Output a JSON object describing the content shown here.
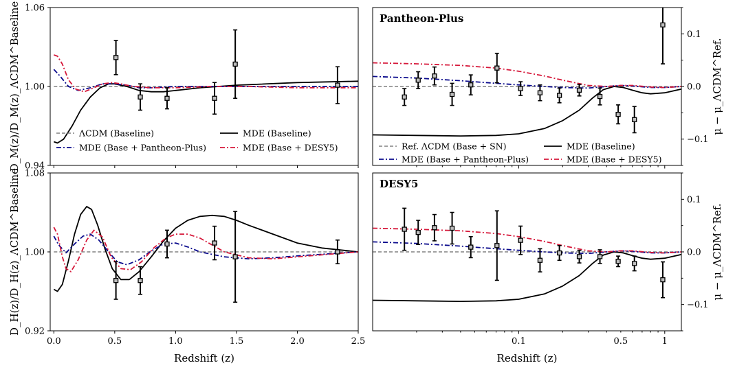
{
  "chart_data": [
    {
      "id": "dm",
      "type": "line",
      "ylabel": "D_M(z)/D_M(z)_ΛCDM^Baseline",
      "ylim": [
        0.94,
        1.06
      ],
      "xlim": [
        -0.03,
        2.5
      ],
      "xscale": "linear",
      "yticks": [
        {
          "v": 0.94,
          "label": "0.94"
        },
        {
          "v": 1.0,
          "label": "1.00"
        },
        {
          "v": 1.06,
          "label": "1.06"
        }
      ],
      "xticks": [],
      "legend": [
        {
          "label": "ΛCDM (Baseline)",
          "series": "ref"
        },
        {
          "label": "MDE (Baseline)",
          "series": "mde"
        },
        {
          "label": "MDE (Base + Pantheon-Plus)",
          "series": "pp"
        },
        {
          "label": "MDE (Base + DESY5)",
          "series": "desy5"
        }
      ],
      "series": [
        {
          "key": "ref",
          "x": [
            0,
            2.5
          ],
          "y": [
            1.0,
            1.0
          ]
        },
        {
          "key": "mde",
          "x": [
            0,
            0.03,
            0.08,
            0.15,
            0.22,
            0.3,
            0.38,
            0.45,
            0.5,
            0.6,
            0.7,
            0.8,
            0.9,
            1.0,
            1.2,
            1.5,
            2.0,
            2.5
          ],
          "y": [
            0.958,
            0.957,
            0.96,
            0.97,
            0.982,
            0.992,
            0.999,
            1.002,
            1.002,
            1.0,
            0.997,
            0.996,
            0.996,
            0.997,
            0.999,
            1.001,
            1.003,
            1.004
          ]
        },
        {
          "key": "pp",
          "x": [
            0,
            0.05,
            0.12,
            0.2,
            0.3,
            0.4,
            0.5,
            0.6,
            0.7,
            0.8,
            1.0,
            1.3,
            1.6,
            2.0,
            2.5
          ],
          "y": [
            1.013,
            1.008,
            1.0,
            0.997,
            0.999,
            1.002,
            1.002,
            1.001,
            0.999,
            0.999,
            1.0,
            1.0,
            1.0,
            1.0,
            1.0
          ]
        },
        {
          "key": "desy5",
          "x": [
            0,
            0.03,
            0.07,
            0.12,
            0.18,
            0.25,
            0.33,
            0.4,
            0.48,
            0.55,
            0.65,
            0.8,
            1.0,
            1.3,
            1.6,
            2.0,
            2.5
          ],
          "y": [
            1.024,
            1.023,
            1.017,
            1.005,
            0.998,
            0.996,
            0.999,
            1.002,
            1.003,
            1.002,
            1.0,
            0.999,
            0.999,
            1.0,
            1.0,
            0.999,
            0.999
          ]
        }
      ],
      "points": [
        {
          "x": 0.51,
          "y": 1.022,
          "err": 0.013
        },
        {
          "x": 0.71,
          "y": 0.992,
          "err": 0.01
        },
        {
          "x": 0.93,
          "y": 0.991,
          "err": 0.008
        },
        {
          "x": 1.32,
          "y": 0.991,
          "err": 0.012
        },
        {
          "x": 1.49,
          "y": 1.017,
          "err": 0.026
        },
        {
          "x": 2.33,
          "y": 1.001,
          "err": 0.014
        }
      ]
    },
    {
      "id": "sn-pp",
      "type": "line",
      "title": "Pantheon-Plus",
      "ylabel": "μ − μ_ΛCDM^Ref.",
      "ylim": [
        -0.15,
        0.15
      ],
      "xlim": [
        0.01,
        1.3
      ],
      "xscale": "log",
      "yticks": [
        {
          "v": -0.1,
          "label": "−0.1"
        },
        {
          "v": 0.0,
          "label": "0.0"
        },
        {
          "v": 0.1,
          "label": "0.1"
        }
      ],
      "xticks": [],
      "legend": [
        {
          "label": "Ref. ΛCDM (Base + SN)",
          "series": "ref"
        },
        {
          "label": "MDE (Baseline)",
          "series": "mde"
        },
        {
          "label": "MDE (Base + Pantheon-Plus)",
          "series": "pp"
        },
        {
          "label": "MDE (Base + DESY5)",
          "series": "desy5"
        }
      ],
      "series": [
        {
          "key": "ref",
          "x": [
            0.01,
            1.3
          ],
          "y": [
            0,
            0
          ]
        },
        {
          "key": "mde",
          "x": [
            0.01,
            0.02,
            0.04,
            0.07,
            0.1,
            0.15,
            0.2,
            0.26,
            0.32,
            0.38,
            0.45,
            0.52,
            0.6,
            0.7,
            0.8,
            1.0,
            1.3
          ],
          "y": [
            -0.092,
            -0.093,
            -0.094,
            -0.093,
            -0.09,
            -0.08,
            -0.065,
            -0.045,
            -0.022,
            -0.006,
            0.0,
            -0.002,
            -0.007,
            -0.012,
            -0.014,
            -0.012,
            -0.005
          ]
        },
        {
          "key": "pp",
          "x": [
            0.01,
            0.02,
            0.04,
            0.07,
            0.1,
            0.15,
            0.2,
            0.3,
            0.4,
            0.5,
            0.6,
            0.8,
            1.0,
            1.3
          ],
          "y": [
            0.019,
            0.016,
            0.011,
            0.006,
            0.003,
            0.0,
            -0.002,
            -0.003,
            0.0,
            0.002,
            0.001,
            -0.002,
            -0.002,
            0.0
          ]
        },
        {
          "key": "desy5",
          "x": [
            0.01,
            0.02,
            0.04,
            0.07,
            0.1,
            0.15,
            0.2,
            0.3,
            0.4,
            0.5,
            0.6,
            0.8,
            1.0,
            1.3
          ],
          "y": [
            0.045,
            0.043,
            0.04,
            0.035,
            0.029,
            0.02,
            0.012,
            0.002,
            0.0,
            0.002,
            0.002,
            -0.001,
            -0.002,
            0.0
          ]
        }
      ],
      "points": [
        {
          "x": 0.0165,
          "y": -0.02,
          "err": 0.016
        },
        {
          "x": 0.0205,
          "y": 0.012,
          "err": 0.016
        },
        {
          "x": 0.0265,
          "y": 0.02,
          "err": 0.017
        },
        {
          "x": 0.035,
          "y": -0.015,
          "err": 0.021
        },
        {
          "x": 0.047,
          "y": 0.003,
          "err": 0.019
        },
        {
          "x": 0.071,
          "y": 0.035,
          "err": 0.028
        },
        {
          "x": 0.103,
          "y": -0.004,
          "err": 0.013
        },
        {
          "x": 0.14,
          "y": -0.012,
          "err": 0.015
        },
        {
          "x": 0.19,
          "y": -0.017,
          "err": 0.014
        },
        {
          "x": 0.26,
          "y": -0.007,
          "err": 0.011
        },
        {
          "x": 0.36,
          "y": -0.019,
          "err": 0.016
        },
        {
          "x": 0.48,
          "y": -0.053,
          "err": 0.018
        },
        {
          "x": 0.62,
          "y": -0.063,
          "err": 0.025
        },
        {
          "x": 0.97,
          "y": 0.117,
          "err": 0.074
        }
      ]
    },
    {
      "id": "dh",
      "type": "line",
      "xlabel": "Redshift (z)",
      "ylabel": "D_H(z)/D_H(z)_ΛCDM^Baseline",
      "ylim": [
        0.92,
        1.08
      ],
      "xlim": [
        -0.03,
        2.5
      ],
      "xscale": "linear",
      "yticks": [
        {
          "v": 0.92,
          "label": "0.92"
        },
        {
          "v": 1.0,
          "label": "1.00"
        },
        {
          "v": 1.08,
          "label": "1.08"
        }
      ],
      "xticks": [
        {
          "v": 0.0,
          "label": "0.0"
        },
        {
          "v": 0.5,
          "label": "0.5"
        },
        {
          "v": 1.0,
          "label": "1.0"
        },
        {
          "v": 1.5,
          "label": "1.5"
        },
        {
          "v": 2.0,
          "label": "2.0"
        },
        {
          "v": 2.5,
          "label": "2.5"
        }
      ],
      "series": [
        {
          "key": "ref",
          "x": [
            0,
            2.5
          ],
          "y": [
            1.0,
            1.0
          ]
        },
        {
          "key": "mde",
          "x": [
            0,
            0.03,
            0.07,
            0.12,
            0.17,
            0.22,
            0.27,
            0.31,
            0.36,
            0.42,
            0.48,
            0.55,
            0.62,
            0.7,
            0.8,
            0.9,
            1.0,
            1.1,
            1.2,
            1.3,
            1.4,
            1.5,
            1.6,
            1.8,
            2.0,
            2.2,
            2.5
          ],
          "y": [
            0.962,
            0.96,
            0.967,
            0.991,
            1.018,
            1.038,
            1.046,
            1.043,
            1.027,
            1.003,
            0.983,
            0.972,
            0.972,
            0.98,
            0.995,
            1.011,
            1.024,
            1.032,
            1.036,
            1.037,
            1.036,
            1.032,
            1.027,
            1.018,
            1.009,
            1.004,
            1.0
          ]
        },
        {
          "key": "pp",
          "x": [
            0,
            0.04,
            0.1,
            0.17,
            0.24,
            0.3,
            0.37,
            0.45,
            0.52,
            0.6,
            0.7,
            0.8,
            0.9,
            1.0,
            1.1,
            1.2,
            1.4,
            1.6,
            1.8,
            2.0,
            2.5
          ],
          "y": [
            1.016,
            1.007,
            0.999,
            1.008,
            1.016,
            1.018,
            1.012,
            1.0,
            0.99,
            0.987,
            0.992,
            1.001,
            1.008,
            1.009,
            1.005,
            1.0,
            0.995,
            0.993,
            0.994,
            0.996,
            1.0
          ]
        },
        {
          "key": "desy5",
          "x": [
            0,
            0.03,
            0.07,
            0.1,
            0.14,
            0.2,
            0.27,
            0.33,
            0.4,
            0.47,
            0.55,
            0.63,
            0.72,
            0.82,
            0.92,
            1.0,
            1.1,
            1.2,
            1.3,
            1.4,
            1.6,
            1.8,
            2.0,
            2.5
          ],
          "y": [
            1.025,
            1.018,
            0.995,
            0.983,
            0.98,
            0.992,
            1.012,
            1.022,
            1.015,
            0.995,
            0.983,
            0.982,
            0.99,
            1.004,
            1.014,
            1.018,
            1.018,
            1.014,
            1.007,
            1.0,
            0.994,
            0.993,
            0.995,
            1.0
          ]
        }
      ],
      "points": [
        {
          "x": 0.51,
          "y": 0.971,
          "err": 0.019
        },
        {
          "x": 0.71,
          "y": 0.971,
          "err": 0.014
        },
        {
          "x": 0.93,
          "y": 1.008,
          "err": 0.014
        },
        {
          "x": 1.32,
          "y": 1.009,
          "err": 0.017
        },
        {
          "x": 1.49,
          "y": 0.995,
          "err": 0.046
        },
        {
          "x": 2.33,
          "y": 1.0,
          "err": 0.012
        }
      ]
    },
    {
      "id": "sn-desy5",
      "type": "line",
      "title": "DESY5",
      "xlabel": "Redshift (z)",
      "ylabel": "μ − μ_ΛCDM^Ref.",
      "ylim": [
        -0.15,
        0.15
      ],
      "xlim": [
        0.01,
        1.3
      ],
      "xscale": "log",
      "yticks": [
        {
          "v": -0.1,
          "label": "−0.1"
        },
        {
          "v": 0.0,
          "label": "0.0"
        },
        {
          "v": 0.1,
          "label": "0.1"
        }
      ],
      "xticks": [
        {
          "v": 0.1,
          "label": "0.1"
        },
        {
          "v": 0.5,
          "label": "0.5"
        },
        {
          "v": 1.0,
          "label": "1"
        }
      ],
      "series": [
        {
          "key": "ref",
          "x": [
            0.01,
            1.3
          ],
          "y": [
            0,
            0
          ]
        },
        {
          "key": "mde",
          "x": [
            0.01,
            0.02,
            0.04,
            0.07,
            0.1,
            0.15,
            0.2,
            0.26,
            0.32,
            0.38,
            0.45,
            0.52,
            0.6,
            0.7,
            0.8,
            1.0,
            1.3
          ],
          "y": [
            -0.092,
            -0.093,
            -0.094,
            -0.093,
            -0.09,
            -0.08,
            -0.065,
            -0.045,
            -0.022,
            -0.006,
            0.0,
            -0.002,
            -0.007,
            -0.012,
            -0.014,
            -0.012,
            -0.005
          ]
        },
        {
          "key": "pp",
          "x": [
            0.01,
            0.02,
            0.04,
            0.07,
            0.1,
            0.15,
            0.2,
            0.3,
            0.4,
            0.5,
            0.6,
            0.8,
            1.0,
            1.3
          ],
          "y": [
            0.019,
            0.016,
            0.011,
            0.006,
            0.003,
            0.0,
            -0.002,
            -0.003,
            0.0,
            0.002,
            0.001,
            -0.002,
            -0.002,
            0.0
          ]
        },
        {
          "key": "desy5",
          "x": [
            0.01,
            0.02,
            0.04,
            0.07,
            0.1,
            0.15,
            0.2,
            0.3,
            0.4,
            0.5,
            0.6,
            0.8,
            1.0,
            1.3
          ],
          "y": [
            0.045,
            0.043,
            0.04,
            0.035,
            0.029,
            0.02,
            0.012,
            0.002,
            0.0,
            0.002,
            0.002,
            -0.001,
            -0.002,
            0.0
          ]
        }
      ],
      "points": [
        {
          "x": 0.0165,
          "y": 0.043,
          "err": 0.04
        },
        {
          "x": 0.0205,
          "y": 0.037,
          "err": 0.023
        },
        {
          "x": 0.0265,
          "y": 0.046,
          "err": 0.025
        },
        {
          "x": 0.035,
          "y": 0.045,
          "err": 0.03
        },
        {
          "x": 0.047,
          "y": 0.009,
          "err": 0.02
        },
        {
          "x": 0.071,
          "y": 0.012,
          "err": 0.066
        },
        {
          "x": 0.103,
          "y": 0.022,
          "err": 0.027
        },
        {
          "x": 0.14,
          "y": -0.016,
          "err": 0.022
        },
        {
          "x": 0.19,
          "y": -0.002,
          "err": 0.014
        },
        {
          "x": 0.26,
          "y": -0.009,
          "err": 0.012
        },
        {
          "x": 0.36,
          "y": -0.009,
          "err": 0.013
        },
        {
          "x": 0.48,
          "y": -0.018,
          "err": 0.01
        },
        {
          "x": 0.62,
          "y": -0.022,
          "err": 0.014
        },
        {
          "x": 0.97,
          "y": -0.053,
          "err": 0.034
        }
      ]
    }
  ],
  "colors": {
    "ref": "#808080",
    "mde": "#000000",
    "pp": "#0a0a8c",
    "desy5": "#d6183a",
    "marker": "#bebebe"
  }
}
